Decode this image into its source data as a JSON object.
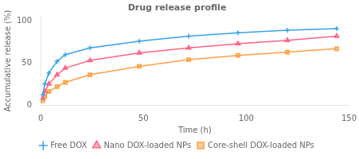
{
  "chart_data": {
    "type": "line",
    "title": "Drug release profile",
    "xlabel": "Time (h)",
    "ylabel": "Accumulative release (%)",
    "x": [
      1,
      2,
      4,
      8,
      12,
      24,
      48,
      72,
      96,
      120,
      144
    ],
    "series": [
      {
        "name": "Free DOX",
        "marker": "plus",
        "values": [
          12,
          25,
          38,
          52,
          60,
          68,
          76,
          82,
          86,
          89,
          91
        ]
      },
      {
        "name": "Nano DOX-loaded NPs",
        "marker": "triangle",
        "values": [
          8,
          16,
          25,
          36,
          44,
          53,
          62,
          68,
          73,
          77,
          82
        ]
      },
      {
        "name": "Core-shell DOX-loaded NPs",
        "marker": "square",
        "values": [
          5,
          10,
          16,
          22,
          27,
          36,
          46,
          54,
          59,
          63,
          67
        ]
      }
    ],
    "xlim": [
      0,
      150
    ],
    "ylim": [
      0,
      105
    ],
    "xticks": [
      0,
      50,
      100,
      150
    ],
    "yticks": [
      0,
      50,
      100
    ],
    "grid": false,
    "legend": "bottom"
  }
}
